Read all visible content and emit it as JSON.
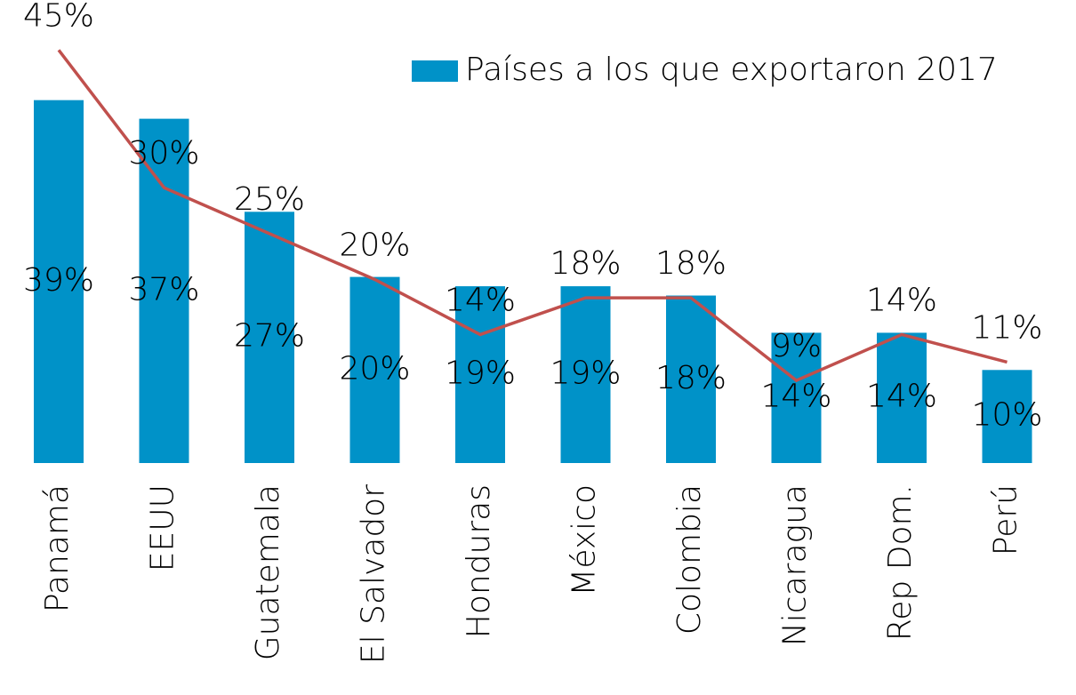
{
  "chart_data": {
    "type": "bar_line",
    "categories": [
      "Panamá",
      "EEUU",
      "Guatemala",
      "El Salvador",
      "Honduras",
      "México",
      "Colombia",
      "Nicaragua",
      "Rep Dom.",
      "Perú"
    ],
    "series": [
      {
        "name": "Países a los que exportaron 2017",
        "color": "#0092c8",
        "type": "bar",
        "values": [
          39,
          37,
          27,
          20,
          19,
          19,
          18,
          14,
          14,
          10
        ],
        "value_labels": [
          "39%",
          "37%",
          "27%",
          "20%",
          "19%",
          "19%",
          "18%",
          "14%",
          "14%",
          "10%"
        ]
      },
      {
        "color": "#c0504d",
        "type": "line",
        "axis": "y2",
        "values": [
          45,
          30,
          25,
          20,
          14,
          18,
          18,
          9,
          14,
          11
        ],
        "value_labels": [
          "45%",
          "30%",
          "25%",
          "20%",
          "14%",
          "18%",
          "18%",
          "9%",
          "14%",
          "11%"
        ]
      }
    ],
    "ylim": [
      0,
      50
    ],
    "y2lim": [
      0,
      50.7
    ],
    "legend": "top-right"
  }
}
